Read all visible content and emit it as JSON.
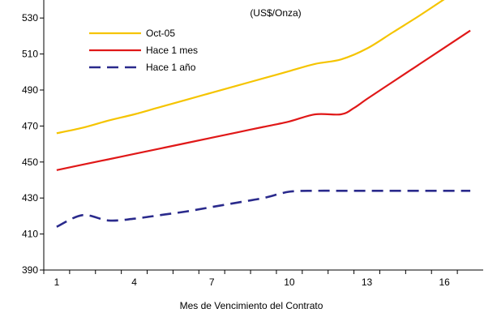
{
  "chart_data": {
    "type": "line",
    "title": "(US$/Onza)",
    "xlabel": "Mes de Vencimiento del Contrato",
    "ylabel": "",
    "xlim": [
      0.5,
      17.5
    ],
    "ylim": [
      390,
      540
    ],
    "x_ticks": [
      1,
      4,
      7,
      10,
      13,
      16
    ],
    "y_ticks": [
      390,
      410,
      430,
      450,
      470,
      490,
      510,
      530
    ],
    "grid": false,
    "legend": "top-left",
    "series": [
      {
        "name": "Oct-05",
        "color": "#f5c400",
        "dash": "solid",
        "x": [
          1,
          2,
          3,
          4,
          5,
          6,
          7,
          8,
          9,
          10,
          11,
          12,
          13,
          14,
          15,
          16
        ],
        "y": [
          466,
          469,
          473,
          476.5,
          480.5,
          484.5,
          488.5,
          492.5,
          496.5,
          500.5,
          504.5,
          507,
          513,
          522,
          531,
          540.5
        ]
      },
      {
        "name": "Hace 1 mes",
        "color": "#e01818",
        "dash": "solid",
        "x": [
          1,
          2,
          3,
          4,
          5,
          6,
          7,
          8,
          9,
          10,
          11,
          12,
          12.5,
          13,
          14,
          15,
          16,
          17
        ],
        "y": [
          445.5,
          448.5,
          451.5,
          454.5,
          457.5,
          460.5,
          463.5,
          466.5,
          469.5,
          472.5,
          476.5,
          476.5,
          480,
          485,
          494.5,
          504,
          513.5,
          523
        ]
      },
      {
        "name": "Hace 1 año",
        "color": "#2a2a8c",
        "dash": "dashed",
        "x": [
          1,
          2,
          3,
          4,
          5,
          6,
          7,
          8,
          9,
          10,
          11,
          12,
          13,
          14,
          15,
          16,
          17
        ],
        "y": [
          414,
          420.5,
          417.5,
          418.5,
          420.5,
          422.5,
          425,
          427.5,
          430,
          433.5,
          434,
          434,
          434,
          434,
          434,
          434,
          434
        ]
      }
    ]
  }
}
